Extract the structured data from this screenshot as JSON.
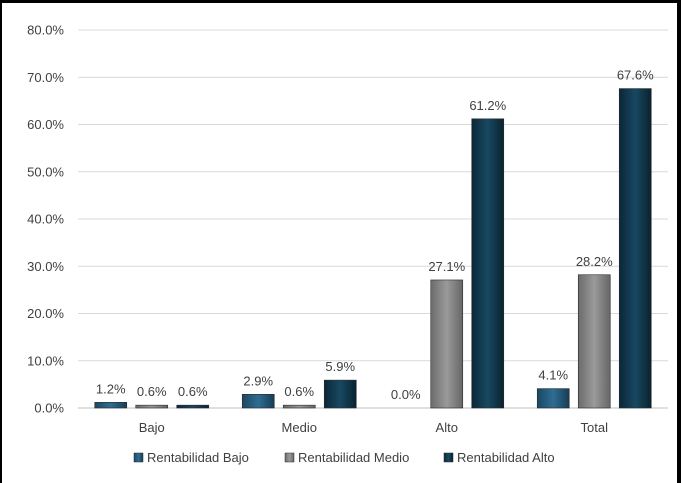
{
  "chart_data": {
    "type": "bar",
    "title": "",
    "xlabel": "",
    "ylabel": "",
    "ylim": [
      0,
      80
    ],
    "yticks": [
      0,
      10,
      20,
      30,
      40,
      50,
      60,
      70,
      80
    ],
    "ytick_labels": [
      "0.0%",
      "10.0%",
      "20.0%",
      "30.0%",
      "40.0%",
      "50.0%",
      "60.0%",
      "70.0%",
      "80.0%"
    ],
    "categories": [
      "Bajo",
      "Medio",
      "Alto",
      "Total"
    ],
    "series": [
      {
        "name": "Rentabilidad Bajo",
        "color": "#1d4f6e",
        "values": [
          1.2,
          2.9,
          0.0,
          4.1
        ],
        "labels": [
          "1.2%",
          "2.9%",
          "0.0%",
          "4.1%"
        ]
      },
      {
        "name": "Rentabilidad Medio",
        "color": "#7f7f7f",
        "values": [
          0.6,
          0.6,
          27.1,
          28.2
        ],
        "labels": [
          "0.6%",
          "0.6%",
          "27.1%",
          "28.2%"
        ]
      },
      {
        "name": "Rentabilidad Alto",
        "color": "#0d3346",
        "values": [
          0.6,
          5.9,
          61.2,
          67.6
        ],
        "labels": [
          "0.6%",
          "5.9%",
          "61.2%",
          "67.6%"
        ]
      }
    ],
    "grid": true,
    "legend_position": "bottom"
  }
}
